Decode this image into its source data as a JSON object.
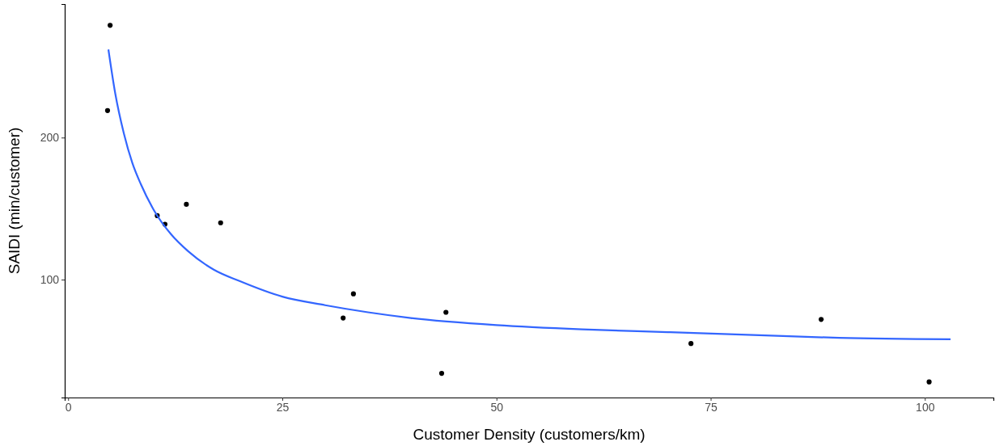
{
  "chart_data": {
    "type": "scatter",
    "xlabel": "Customer Density (customers/km)",
    "ylabel": "SAIDI (min/customer)",
    "xlim": [
      -0.4,
      108
    ],
    "ylim": [
      17,
      294
    ],
    "xticks": [
      0,
      25,
      50,
      75,
      100
    ],
    "yticks": [
      100,
      200
    ],
    "grid": false,
    "marker": "circle",
    "series": [
      {
        "color": "#000000",
        "x": [
          4.9,
          4.6,
          10.4,
          11.3,
          13.8,
          17.8,
          32.1,
          33.3,
          44.1,
          43.6,
          72.7,
          87.9,
          100.5
        ],
        "values": [
          279,
          219,
          145,
          139,
          153,
          140,
          73,
          90,
          77,
          34,
          55,
          72,
          28
        ]
      },
      {
        "type": "line",
        "color": "#3366ff",
        "line_style": "solid",
        "marker": "none",
        "x": [
          4.7,
          5.5,
          6.5,
          7.5,
          8.5,
          10,
          12,
          14,
          17,
          20,
          25,
          30,
          35,
          40,
          50,
          60,
          70,
          80,
          90,
          103
        ],
        "values": [
          262,
          231,
          203,
          182,
          167,
          149,
          132,
          120,
          107,
          99,
          88,
          82,
          77,
          73,
          68,
          65,
          63,
          61,
          59,
          58
        ]
      }
    ]
  }
}
